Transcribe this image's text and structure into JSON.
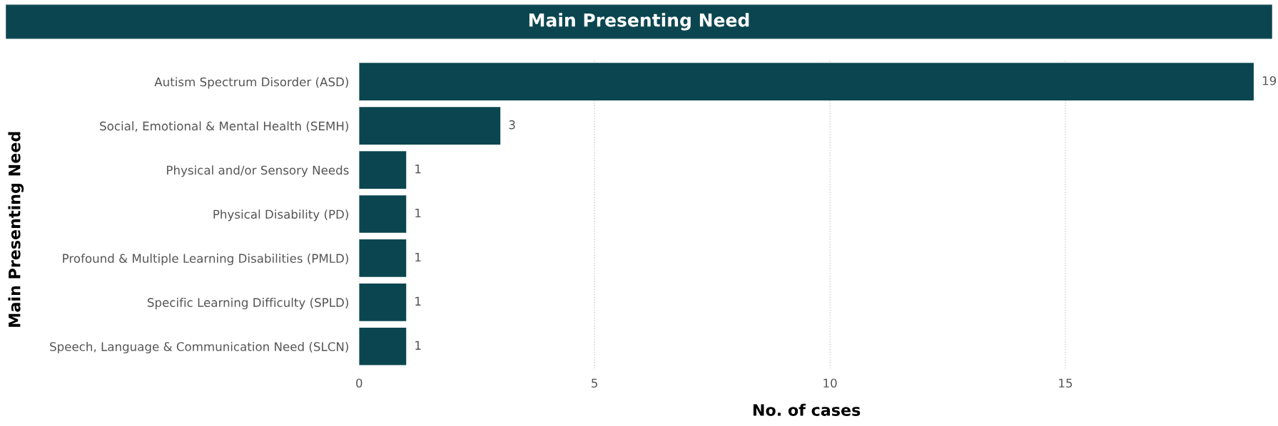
{
  "chart_data": {
    "type": "bar",
    "orientation": "horizontal",
    "title": "Main Presenting Need",
    "xlabel": "No. of cases",
    "ylabel": "Main Presenting Need",
    "categories": [
      "Autism Spectrum Disorder (ASD)",
      "Social, Emotional & Mental Health (SEMH)",
      "Physical and/or Sensory Needs",
      "Physical Disability (PD)",
      "Profound & Multiple Learning Disabilities (PMLD)",
      "Specific Learning Difficulty (SPLD)",
      "Speech, Language & Communication Need (SLCN)"
    ],
    "values": [
      19,
      3,
      1,
      1,
      1,
      1,
      1
    ],
    "color": "#0b4650",
    "xlim": [
      0,
      19
    ],
    "xticks": [
      0,
      5,
      10,
      15
    ],
    "grid": "x",
    "data_labels": true
  }
}
